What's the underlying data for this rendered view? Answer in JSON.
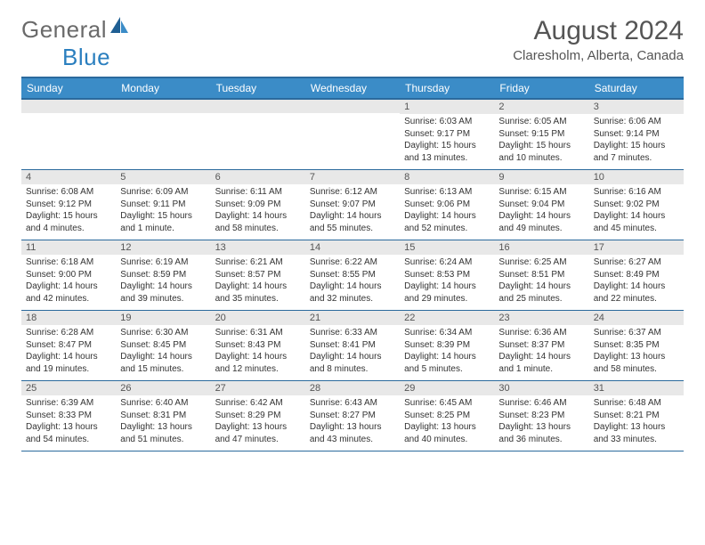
{
  "logo": {
    "general": "General",
    "blue": "Blue"
  },
  "title": "August 2024",
  "location": "Claresholm, Alberta, Canada",
  "weekdays": [
    "Sunday",
    "Monday",
    "Tuesday",
    "Wednesday",
    "Thursday",
    "Friday",
    "Saturday"
  ],
  "colors": {
    "header_bg": "#3b8cc7",
    "header_border": "#2b6a9d",
    "daynum_bg": "#e8e8e8",
    "text": "#333333",
    "logo_gray": "#6a6a6a",
    "logo_blue": "#2b7fbf"
  },
  "weeks": [
    [
      {
        "n": "",
        "sr": "",
        "ss": "",
        "dl": ""
      },
      {
        "n": "",
        "sr": "",
        "ss": "",
        "dl": ""
      },
      {
        "n": "",
        "sr": "",
        "ss": "",
        "dl": ""
      },
      {
        "n": "",
        "sr": "",
        "ss": "",
        "dl": ""
      },
      {
        "n": "1",
        "sr": "Sunrise: 6:03 AM",
        "ss": "Sunset: 9:17 PM",
        "dl": "Daylight: 15 hours and 13 minutes."
      },
      {
        "n": "2",
        "sr": "Sunrise: 6:05 AM",
        "ss": "Sunset: 9:15 PM",
        "dl": "Daylight: 15 hours and 10 minutes."
      },
      {
        "n": "3",
        "sr": "Sunrise: 6:06 AM",
        "ss": "Sunset: 9:14 PM",
        "dl": "Daylight: 15 hours and 7 minutes."
      }
    ],
    [
      {
        "n": "4",
        "sr": "Sunrise: 6:08 AM",
        "ss": "Sunset: 9:12 PM",
        "dl": "Daylight: 15 hours and 4 minutes."
      },
      {
        "n": "5",
        "sr": "Sunrise: 6:09 AM",
        "ss": "Sunset: 9:11 PM",
        "dl": "Daylight: 15 hours and 1 minute."
      },
      {
        "n": "6",
        "sr": "Sunrise: 6:11 AM",
        "ss": "Sunset: 9:09 PM",
        "dl": "Daylight: 14 hours and 58 minutes."
      },
      {
        "n": "7",
        "sr": "Sunrise: 6:12 AM",
        "ss": "Sunset: 9:07 PM",
        "dl": "Daylight: 14 hours and 55 minutes."
      },
      {
        "n": "8",
        "sr": "Sunrise: 6:13 AM",
        "ss": "Sunset: 9:06 PM",
        "dl": "Daylight: 14 hours and 52 minutes."
      },
      {
        "n": "9",
        "sr": "Sunrise: 6:15 AM",
        "ss": "Sunset: 9:04 PM",
        "dl": "Daylight: 14 hours and 49 minutes."
      },
      {
        "n": "10",
        "sr": "Sunrise: 6:16 AM",
        "ss": "Sunset: 9:02 PM",
        "dl": "Daylight: 14 hours and 45 minutes."
      }
    ],
    [
      {
        "n": "11",
        "sr": "Sunrise: 6:18 AM",
        "ss": "Sunset: 9:00 PM",
        "dl": "Daylight: 14 hours and 42 minutes."
      },
      {
        "n": "12",
        "sr": "Sunrise: 6:19 AM",
        "ss": "Sunset: 8:59 PM",
        "dl": "Daylight: 14 hours and 39 minutes."
      },
      {
        "n": "13",
        "sr": "Sunrise: 6:21 AM",
        "ss": "Sunset: 8:57 PM",
        "dl": "Daylight: 14 hours and 35 minutes."
      },
      {
        "n": "14",
        "sr": "Sunrise: 6:22 AM",
        "ss": "Sunset: 8:55 PM",
        "dl": "Daylight: 14 hours and 32 minutes."
      },
      {
        "n": "15",
        "sr": "Sunrise: 6:24 AM",
        "ss": "Sunset: 8:53 PM",
        "dl": "Daylight: 14 hours and 29 minutes."
      },
      {
        "n": "16",
        "sr": "Sunrise: 6:25 AM",
        "ss": "Sunset: 8:51 PM",
        "dl": "Daylight: 14 hours and 25 minutes."
      },
      {
        "n": "17",
        "sr": "Sunrise: 6:27 AM",
        "ss": "Sunset: 8:49 PM",
        "dl": "Daylight: 14 hours and 22 minutes."
      }
    ],
    [
      {
        "n": "18",
        "sr": "Sunrise: 6:28 AM",
        "ss": "Sunset: 8:47 PM",
        "dl": "Daylight: 14 hours and 19 minutes."
      },
      {
        "n": "19",
        "sr": "Sunrise: 6:30 AM",
        "ss": "Sunset: 8:45 PM",
        "dl": "Daylight: 14 hours and 15 minutes."
      },
      {
        "n": "20",
        "sr": "Sunrise: 6:31 AM",
        "ss": "Sunset: 8:43 PM",
        "dl": "Daylight: 14 hours and 12 minutes."
      },
      {
        "n": "21",
        "sr": "Sunrise: 6:33 AM",
        "ss": "Sunset: 8:41 PM",
        "dl": "Daylight: 14 hours and 8 minutes."
      },
      {
        "n": "22",
        "sr": "Sunrise: 6:34 AM",
        "ss": "Sunset: 8:39 PM",
        "dl": "Daylight: 14 hours and 5 minutes."
      },
      {
        "n": "23",
        "sr": "Sunrise: 6:36 AM",
        "ss": "Sunset: 8:37 PM",
        "dl": "Daylight: 14 hours and 1 minute."
      },
      {
        "n": "24",
        "sr": "Sunrise: 6:37 AM",
        "ss": "Sunset: 8:35 PM",
        "dl": "Daylight: 13 hours and 58 minutes."
      }
    ],
    [
      {
        "n": "25",
        "sr": "Sunrise: 6:39 AM",
        "ss": "Sunset: 8:33 PM",
        "dl": "Daylight: 13 hours and 54 minutes."
      },
      {
        "n": "26",
        "sr": "Sunrise: 6:40 AM",
        "ss": "Sunset: 8:31 PM",
        "dl": "Daylight: 13 hours and 51 minutes."
      },
      {
        "n": "27",
        "sr": "Sunrise: 6:42 AM",
        "ss": "Sunset: 8:29 PM",
        "dl": "Daylight: 13 hours and 47 minutes."
      },
      {
        "n": "28",
        "sr": "Sunrise: 6:43 AM",
        "ss": "Sunset: 8:27 PM",
        "dl": "Daylight: 13 hours and 43 minutes."
      },
      {
        "n": "29",
        "sr": "Sunrise: 6:45 AM",
        "ss": "Sunset: 8:25 PM",
        "dl": "Daylight: 13 hours and 40 minutes."
      },
      {
        "n": "30",
        "sr": "Sunrise: 6:46 AM",
        "ss": "Sunset: 8:23 PM",
        "dl": "Daylight: 13 hours and 36 minutes."
      },
      {
        "n": "31",
        "sr": "Sunrise: 6:48 AM",
        "ss": "Sunset: 8:21 PM",
        "dl": "Daylight: 13 hours and 33 minutes."
      }
    ]
  ]
}
